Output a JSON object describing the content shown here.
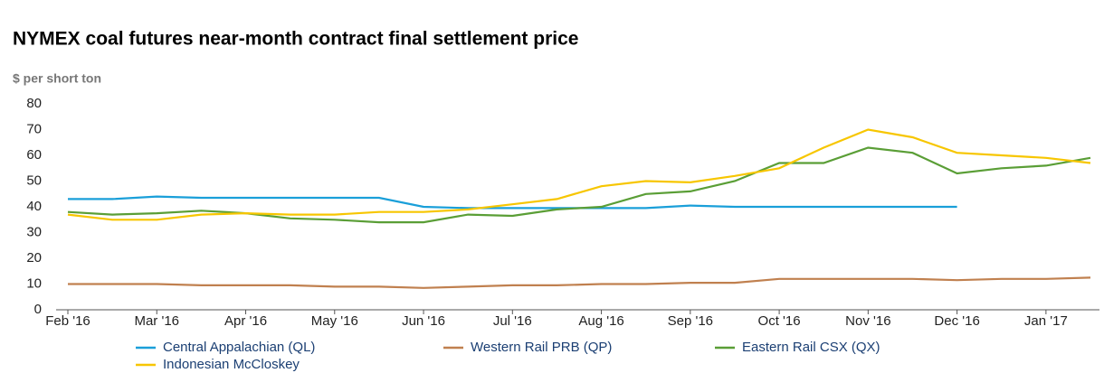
{
  "chart_data": {
    "type": "line",
    "title": "NYMEX coal futures near-month contract final settlement price",
    "y_label": "$ per short ton",
    "categories": [
      "Feb '16",
      null,
      "Mar '16",
      null,
      "Apr '16",
      null,
      "May '16",
      null,
      "Jun '16",
      null,
      "Jul '16",
      null,
      "Aug '16",
      null,
      "Sep '16",
      null,
      "Oct '16",
      null,
      "Nov '16",
      null,
      "Dec '16",
      null,
      "Jan '17",
      null
    ],
    "series": [
      {
        "name": "Central Appalachian (QL)",
        "color": "#1a9fd9",
        "values": [
          43,
          43,
          44,
          43.5,
          43.5,
          43.5,
          43.5,
          43.5,
          40,
          39.5,
          39.5,
          39.5,
          39.5,
          39.5,
          40.5,
          40,
          40,
          40,
          40,
          40,
          40,
          null,
          null,
          null
        ]
      },
      {
        "name": "Western Rail PRB (QP)",
        "color": "#c0804f",
        "values": [
          10,
          10,
          10,
          9.5,
          9.5,
          9.5,
          9,
          9,
          8.5,
          9,
          9.5,
          9.5,
          10,
          10,
          10.5,
          10.5,
          12,
          12,
          12,
          12,
          11.5,
          12,
          12,
          12.5
        ]
      },
      {
        "name": "Eastern Rail CSX (QX)",
        "color": "#5a9e36",
        "values": [
          38,
          37,
          37.5,
          38.5,
          37.5,
          35.5,
          35,
          34,
          34,
          37,
          36.5,
          39,
          40,
          45,
          46,
          50,
          57,
          57,
          63,
          61,
          53,
          55,
          56,
          59
        ]
      },
      {
        "name": "Indonesian McCloskey",
        "color": "#f7c600",
        "values": [
          37,
          35,
          35,
          37,
          37.5,
          37,
          37,
          38,
          38,
          39,
          41,
          43,
          48,
          50,
          49.5,
          52,
          55,
          63,
          70,
          67,
          61,
          60,
          59,
          57
        ]
      }
    ],
    "ylim": [
      0,
      80
    ],
    "yticks": [
      0,
      10,
      20,
      30,
      40,
      50,
      60,
      70,
      80
    ],
    "grid": false
  }
}
